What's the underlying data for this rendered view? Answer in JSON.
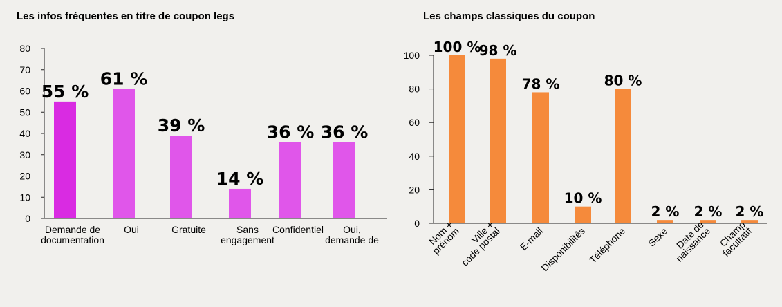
{
  "chart_data": [
    {
      "type": "bar",
      "title": "Les infos fréquentes en titre de coupon legs",
      "xlabel": "",
      "ylabel": "",
      "ylim": [
        0,
        80
      ],
      "yticks": [
        0,
        10,
        20,
        30,
        40,
        50,
        60,
        70,
        80
      ],
      "categories": [
        [
          "Demande de",
          "documentation"
        ],
        [
          "Oui"
        ],
        [
          "Gratuite"
        ],
        [
          "Sans",
          "engagement"
        ],
        [
          "Confidentiel"
        ],
        [
          "Oui,",
          "demande de"
        ]
      ],
      "values": [
        55,
        61,
        39,
        14,
        36,
        36
      ],
      "data_labels": [
        "55 %",
        "61 %",
        "39 %",
        "14 %",
        "36 %",
        "36 %"
      ],
      "colors": [
        "#d92be2",
        "#e056ea",
        "#e056ea",
        "#e056ea",
        "#e056ea",
        "#e056ea"
      ],
      "grid": false
    },
    {
      "type": "bar",
      "title": "Les champs classiques du coupon",
      "xlabel": "",
      "ylabel": "",
      "ylim": [
        0,
        100
      ],
      "yticks": [
        0,
        20,
        40,
        60,
        80,
        100
      ],
      "categories": [
        [
          "Nom +",
          "prénom"
        ],
        [
          "Ville +",
          "code postal"
        ],
        [
          "E-mail"
        ],
        [
          "Disponibilités"
        ],
        [
          "Téléphone"
        ],
        [
          "Sexe"
        ],
        [
          "Date de",
          "naissance"
        ],
        [
          "Champ",
          "facultatif"
        ]
      ],
      "values": [
        100,
        98,
        78,
        10,
        80,
        2,
        2,
        2
      ],
      "data_labels": [
        "100 %",
        "98 %",
        "78 %",
        "10 %",
        "80 %",
        "2 %",
        "2 %",
        "2 %"
      ],
      "colors": [
        "#f58a3b",
        "#f58a3b",
        "#f58a3b",
        "#f58a3b",
        "#f58a3b",
        "#f58a3b",
        "#f58a3b",
        "#f58a3b"
      ],
      "grid": false
    }
  ]
}
